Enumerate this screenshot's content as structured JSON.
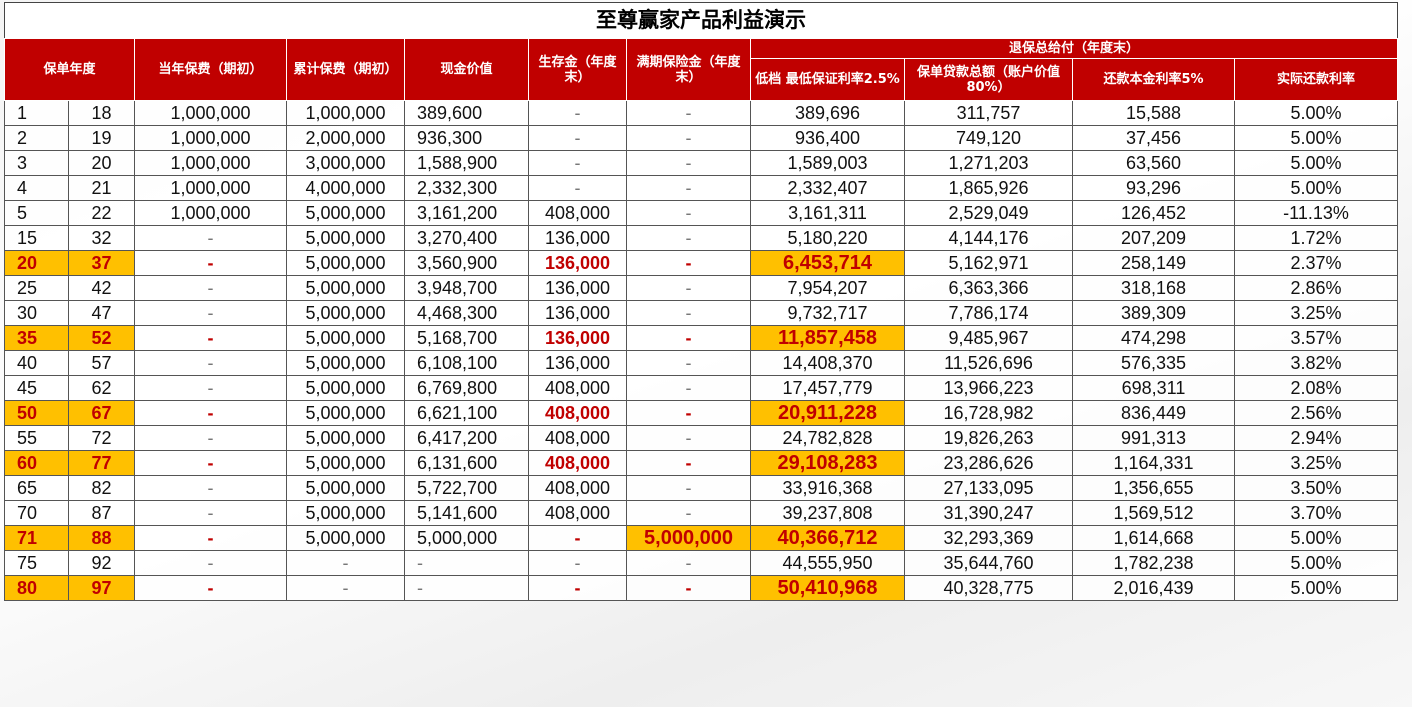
{
  "title": "至尊赢家产品利益演示",
  "headers": {
    "policy_year": "保单年度",
    "annual_premium": "当年保费（期初）",
    "cumulative_premium": "累计保费（期初）",
    "cash_value": "现金价值",
    "survival_benefit": "生存金（年度末）",
    "maturity_benefit": "满期保险金（年度末）",
    "surrender_group": "退保总给付（年度末）",
    "low_tier": "低档 最低保证利率2.5%",
    "loan_total": "保单贷款总额（账户价值80%）",
    "repay_rate": "还款本金利率5%",
    "actual_rate": "实际还款利率"
  },
  "rows": [
    [
      "1",
      "18",
      "1,000,000",
      "1,000,000",
      "389,600",
      "-",
      "-",
      "389,696",
      "311,757",
      "15,588",
      "5.00%"
    ],
    [
      "2",
      "19",
      "1,000,000",
      "2,000,000",
      "936,300",
      "-",
      "-",
      "936,400",
      "749,120",
      "37,456",
      "5.00%"
    ],
    [
      "3",
      "20",
      "1,000,000",
      "3,000,000",
      "1,588,900",
      "-",
      "-",
      "1,589,003",
      "1,271,203",
      "63,560",
      "5.00%"
    ],
    [
      "4",
      "21",
      "1,000,000",
      "4,000,000",
      "2,332,300",
      "-",
      "-",
      "2,332,407",
      "1,865,926",
      "93,296",
      "5.00%"
    ],
    [
      "5",
      "22",
      "1,000,000",
      "5,000,000",
      "3,161,200",
      "408,000",
      "-",
      "3,161,311",
      "2,529,049",
      "126,452",
      "-11.13%"
    ],
    [
      "15",
      "32",
      "-",
      "5,000,000",
      "3,270,400",
      "136,000",
      "-",
      "5,180,220",
      "4,144,176",
      "207,209",
      "1.72%"
    ],
    [
      "20",
      "37",
      "-",
      "5,000,000",
      "3,560,900",
      "136,000",
      "-",
      "6,453,714",
      "5,162,971",
      "258,149",
      "2.37%"
    ],
    [
      "25",
      "42",
      "-",
      "5,000,000",
      "3,948,700",
      "136,000",
      "-",
      "7,954,207",
      "6,363,366",
      "318,168",
      "2.86%"
    ],
    [
      "30",
      "47",
      "-",
      "5,000,000",
      "4,468,300",
      "136,000",
      "-",
      "9,732,717",
      "7,786,174",
      "389,309",
      "3.25%"
    ],
    [
      "35",
      "52",
      "-",
      "5,000,000",
      "5,168,700",
      "136,000",
      "-",
      "11,857,458",
      "9,485,967",
      "474,298",
      "3.57%"
    ],
    [
      "40",
      "57",
      "-",
      "5,000,000",
      "6,108,100",
      "136,000",
      "-",
      "14,408,370",
      "11,526,696",
      "576,335",
      "3.82%"
    ],
    [
      "45",
      "62",
      "-",
      "5,000,000",
      "6,769,800",
      "408,000",
      "-",
      "17,457,779",
      "13,966,223",
      "698,311",
      "2.08%"
    ],
    [
      "50",
      "67",
      "-",
      "5,000,000",
      "6,621,100",
      "408,000",
      "-",
      "20,911,228",
      "16,728,982",
      "836,449",
      "2.56%"
    ],
    [
      "55",
      "72",
      "-",
      "5,000,000",
      "6,417,200",
      "408,000",
      "-",
      "24,782,828",
      "19,826,263",
      "991,313",
      "2.94%"
    ],
    [
      "60",
      "77",
      "-",
      "5,000,000",
      "6,131,600",
      "408,000",
      "-",
      "29,108,283",
      "23,286,626",
      "1,164,331",
      "3.25%"
    ],
    [
      "65",
      "82",
      "-",
      "5,000,000",
      "5,722,700",
      "408,000",
      "-",
      "33,916,368",
      "27,133,095",
      "1,356,655",
      "3.50%"
    ],
    [
      "70",
      "87",
      "-",
      "5,000,000",
      "5,141,600",
      "408,000",
      "-",
      "39,237,808",
      "31,390,247",
      "1,569,512",
      "3.70%"
    ],
    [
      "71",
      "88",
      "-",
      "5,000,000",
      "5,000,000",
      "-",
      "5,000,000",
      "40,366,712",
      "32,293,369",
      "1,614,668",
      "5.00%"
    ],
    [
      "75",
      "92",
      "-",
      "-",
      "-",
      "-",
      "-",
      "44,555,950",
      "35,644,760",
      "1,782,238",
      "5.00%"
    ],
    [
      "80",
      "97",
      "-",
      "-",
      "-",
      "-",
      "-",
      "50,410,968",
      "40,328,775",
      "2,016,439",
      "5.00%"
    ]
  ],
  "highlighted_rows": [
    6,
    9,
    12,
    14,
    17,
    19
  ],
  "colors": {
    "header_red": "#c00000",
    "highlight_yellow": "#ffc000",
    "highlight_text": "#c00000"
  }
}
